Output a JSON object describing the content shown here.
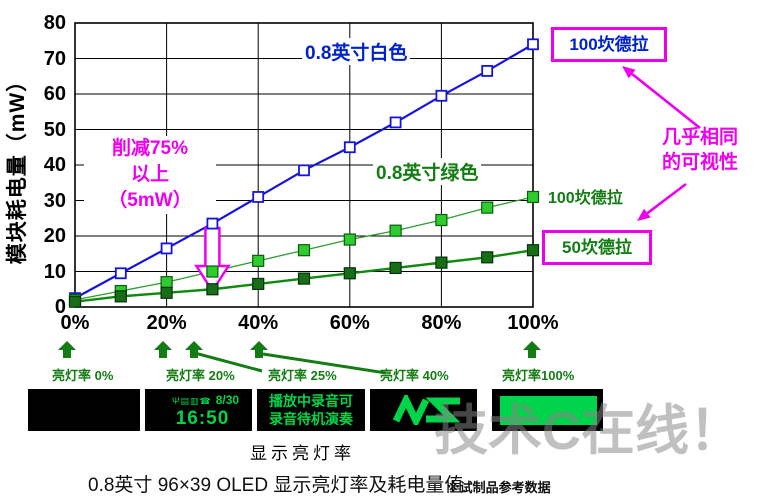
{
  "colors": {
    "axis": "#000000",
    "magenta": "#ee00ee",
    "blue_line": "#1414dd",
    "blue_text": "#0022cc",
    "green_label": "#137c13",
    "display_green": "#00d44a",
    "watermark_gray": "rgba(135,135,135,0.52)"
  },
  "chart_data": {
    "type": "line",
    "title": "0.8英寸 96×39 OLED 显示亮灯率及耗电量值",
    "note": "※试制品参考数据",
    "xlabel": "显示亮灯率",
    "ylabel": "模块耗电量（mW）",
    "ylim": [
      0,
      80
    ],
    "y_ticks": [
      0,
      10,
      20,
      30,
      40,
      50,
      60,
      70,
      80
    ],
    "x_tick_values": [
      0,
      20,
      40,
      60,
      80,
      100
    ],
    "x_tick_labels": [
      "0%",
      "20%",
      "40%",
      "60%",
      "80%",
      "100%"
    ],
    "x": [
      0,
      10,
      20,
      30,
      40,
      50,
      60,
      70,
      80,
      90,
      100
    ],
    "grid": true,
    "series": [
      {
        "name": "0.8英寸白色（100坎德拉）",
        "values": [
          2.5,
          9.5,
          16.5,
          23.5,
          31,
          38.5,
          45,
          52,
          59.5,
          66.5,
          74
        ],
        "color": "#1414dd",
        "line_width": 2.2,
        "marker": "open-square",
        "marker_size": 10,
        "marker_fill": "#ffffff",
        "marker_stroke": "#1414dd",
        "marker_stroke_width": 1.8
      },
      {
        "name": "0.8英寸绿色（100坎德拉）",
        "values": [
          2,
          4.5,
          7,
          10,
          13,
          16,
          19,
          21.5,
          24.5,
          28,
          31
        ],
        "color": "#2d9e2d",
        "line_width": 1.3,
        "marker": "filled-square",
        "marker_size": 11,
        "marker_fill": "#2ecc2e",
        "marker_stroke": "#0a5c0a",
        "marker_stroke_width": 1.2
      },
      {
        "name": "0.8英寸绿色（50坎德拉）",
        "values": [
          1.5,
          3,
          4,
          5,
          6.5,
          8,
          9.5,
          11,
          12.5,
          14,
          16
        ],
        "color": "#0f8a0f",
        "line_width": 2.4,
        "marker": "filled-square",
        "marker_size": 11,
        "marker_fill": "#176e17",
        "marker_stroke": "#04330a",
        "marker_stroke_width": 1.2
      }
    ],
    "annotations": [
      "削减75%以上（5mW）",
      "几乎相同的可视性",
      "100坎德拉（白色）",
      "100坎德拉（绿色）",
      "50坎德拉（绿色）"
    ]
  },
  "chart_labels": {
    "white_series": "0.8英寸白色",
    "green_series": "0.8英寸绿色",
    "reduction": [
      "削减75%",
      "以上",
      "（5mW）"
    ],
    "visibility": [
      "几乎相同",
      "的可视性"
    ],
    "box_white_candela": "100坎德拉",
    "label_green_candela": "100坎德拉",
    "box_green_candela": "50坎德拉"
  },
  "footer": {
    "markers": [
      {
        "lit_rate": "0%",
        "label": "亮灯率  0%"
      },
      {
        "lit_rate": "20%",
        "label": "亮灯率 20%"
      },
      {
        "lit_rate": "25%",
        "label": "亮灯率 25%"
      },
      {
        "lit_rate": "40%",
        "label": "亮灯率 40%"
      },
      {
        "lit_rate": "100%",
        "label": "亮灯率100%"
      }
    ],
    "strip_caption": "显示亮灯率"
  },
  "displays": [
    {
      "kind": "blank",
      "lit_rate": "0%"
    },
    {
      "kind": "clock",
      "lit_rate": "20%",
      "icons": "Ψ▤▥☎",
      "date": "8/30",
      "time": "16:50"
    },
    {
      "kind": "text",
      "lit_rate": "25%",
      "lines": [
        "播放中录音可",
        "录音待机演奏"
      ]
    },
    {
      "kind": "logo",
      "lit_rate": "40%",
      "logo": "NS"
    },
    {
      "kind": "full",
      "lit_rate": "100%"
    }
  ],
  "caption": {
    "text": "0.8英寸 96×39 OLED 显示亮灯率及耗电量值",
    "note": "※试制品参考数据"
  },
  "watermark": "技术C在线！"
}
